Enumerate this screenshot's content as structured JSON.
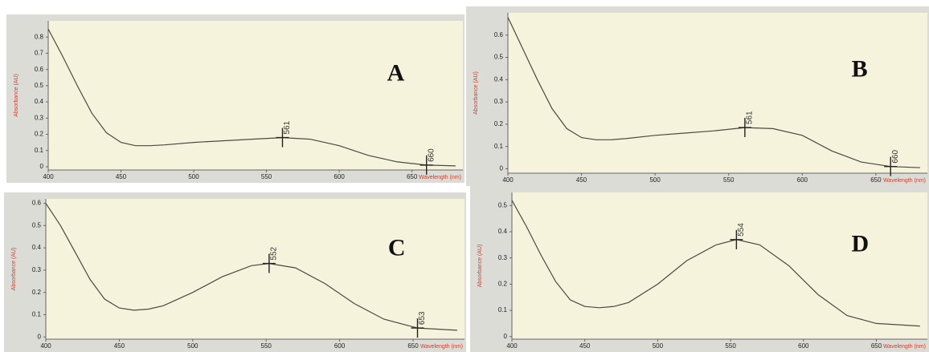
{
  "chart_data": [
    {
      "type": "line",
      "title": "A",
      "x_label": "Wavelength (nm)",
      "y_label": "Absorbance (AU)",
      "color": "#4a4a40",
      "x": [
        400,
        410,
        420,
        430,
        440,
        450,
        460,
        470,
        480,
        500,
        520,
        540,
        561,
        580,
        600,
        620,
        640,
        660,
        680
      ],
      "values": [
        0.85,
        0.68,
        0.5,
        0.33,
        0.21,
        0.15,
        0.13,
        0.13,
        0.135,
        0.15,
        0.16,
        0.17,
        0.18,
        0.17,
        0.13,
        0.07,
        0.03,
        0.01,
        0.005
      ],
      "xlim": [
        400,
        685
      ],
      "ylim": [
        -0.02,
        0.9
      ],
      "xticks": [
        400,
        450,
        500,
        550,
        600,
        650
      ],
      "yticks": [
        0,
        0.1,
        0.2,
        0.3,
        0.4,
        0.5,
        0.6,
        0.7,
        0.8
      ],
      "markers": [
        {
          "x": 561,
          "y": 0.18
        },
        {
          "x": 660,
          "y": 0.01
        }
      ]
    },
    {
      "type": "line",
      "title": "B",
      "x_label": "Wavelength (nm)",
      "y_label": "Absorbance (AU)",
      "color": "#4a4a40",
      "x": [
        400,
        410,
        420,
        430,
        440,
        450,
        460,
        470,
        480,
        500,
        520,
        540,
        561,
        580,
        600,
        620,
        640,
        660,
        680
      ],
      "values": [
        0.68,
        0.54,
        0.4,
        0.27,
        0.18,
        0.14,
        0.13,
        0.13,
        0.135,
        0.15,
        0.16,
        0.17,
        0.185,
        0.18,
        0.15,
        0.08,
        0.03,
        0.01,
        0.005
      ],
      "xlim": [
        400,
        685
      ],
      "ylim": [
        -0.02,
        0.7
      ],
      "xticks": [
        400,
        450,
        500,
        550,
        600,
        650
      ],
      "yticks": [
        0,
        0.1,
        0.2,
        0.3,
        0.4,
        0.5,
        0.6
      ],
      "markers": [
        {
          "x": 561,
          "y": 0.185
        },
        {
          "x": 660,
          "y": 0.01
        }
      ]
    },
    {
      "type": "line",
      "title": "C",
      "x_label": "Wavelength (nm)",
      "y_label": "Absorbance (AU)",
      "color": "#4a4a40",
      "x": [
        400,
        410,
        420,
        430,
        440,
        450,
        460,
        470,
        480,
        500,
        520,
        540,
        552,
        570,
        590,
        610,
        630,
        653,
        680
      ],
      "values": [
        0.6,
        0.5,
        0.38,
        0.26,
        0.17,
        0.13,
        0.12,
        0.125,
        0.14,
        0.2,
        0.27,
        0.32,
        0.33,
        0.31,
        0.24,
        0.15,
        0.08,
        0.04,
        0.03
      ],
      "xlim": [
        400,
        685
      ],
      "ylim": [
        -0.01,
        0.62
      ],
      "xticks": [
        400,
        450,
        500,
        550,
        600,
        650
      ],
      "yticks": [
        0,
        0.1,
        0.2,
        0.3,
        0.4,
        0.5,
        0.6
      ],
      "markers": [
        {
          "x": 552,
          "y": 0.33
        },
        {
          "x": 653,
          "y": 0.04
        }
      ]
    },
    {
      "type": "line",
      "title": "D",
      "x_label": "Wavelength (nm)",
      "y_label": "Absorbance (AU)",
      "color": "#4a4a40",
      "x": [
        400,
        410,
        420,
        430,
        440,
        450,
        460,
        470,
        480,
        500,
        520,
        540,
        554,
        570,
        590,
        610,
        630,
        650,
        680
      ],
      "values": [
        0.52,
        0.42,
        0.31,
        0.21,
        0.14,
        0.115,
        0.11,
        0.115,
        0.13,
        0.2,
        0.29,
        0.35,
        0.37,
        0.35,
        0.27,
        0.16,
        0.08,
        0.05,
        0.04
      ],
      "xlim": [
        400,
        685
      ],
      "ylim": [
        -0.01,
        0.55
      ],
      "xticks": [
        400,
        450,
        500,
        550,
        600,
        650
      ],
      "yticks": [
        0,
        0.1,
        0.2,
        0.3,
        0.4,
        0.5
      ],
      "markers": [
        {
          "x": 554,
          "y": 0.37
        }
      ]
    }
  ]
}
